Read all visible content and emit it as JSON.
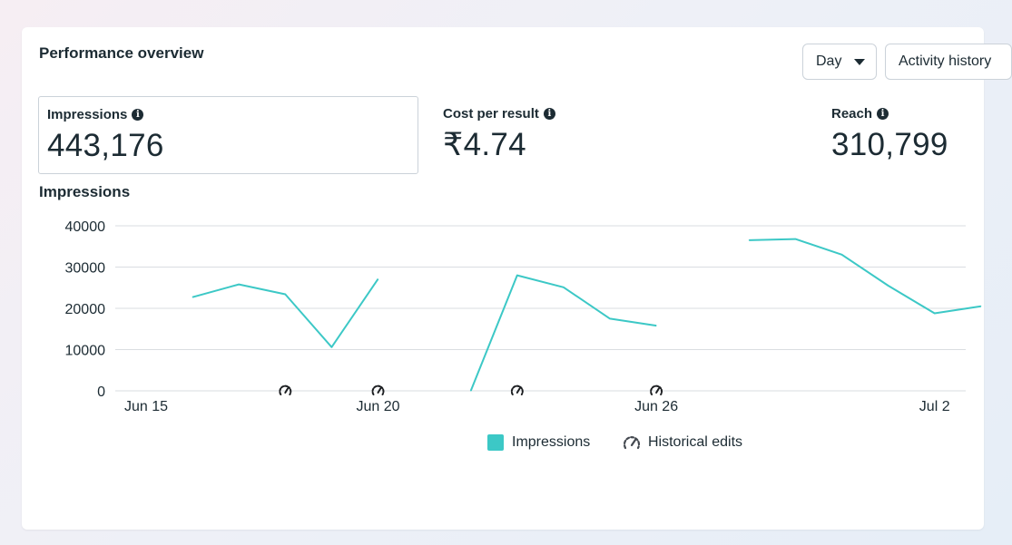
{
  "header": {
    "title": "Performance overview",
    "day_label": "Day",
    "activity_label": "Activity history"
  },
  "metrics": [
    {
      "label": "Impressions",
      "value": "443,176",
      "selected": true
    },
    {
      "label": "Cost per result",
      "value": "₹4.74",
      "selected": false
    },
    {
      "label": "Reach",
      "value": "310,799",
      "selected": false
    }
  ],
  "chart_title": "Impressions",
  "legend": {
    "impressions": "Impressions",
    "historical_edits": "Historical edits"
  },
  "colors": {
    "line": "#3cc8c6",
    "grid": "#dadde1"
  },
  "chart_data": {
    "type": "line",
    "title": "Impressions",
    "ylim": [
      0,
      40000
    ],
    "yticks": [
      0,
      10000,
      20000,
      30000,
      40000
    ],
    "xticks": [
      {
        "day": 0,
        "label": "Jun 15"
      },
      {
        "day": 5,
        "label": "Jun 20"
      },
      {
        "day": 11,
        "label": "Jun 26"
      },
      {
        "day": 17,
        "label": "Jul 2"
      }
    ],
    "series": [
      {
        "name": "Impressions",
        "segments": [
          [
            [
              1,
              22700
            ],
            [
              2,
              25800
            ],
            [
              3,
              23400
            ],
            [
              4,
              10600
            ],
            [
              5,
              27100
            ]
          ],
          [
            [
              7,
              0
            ],
            [
              8,
              28000
            ],
            [
              9,
              25100
            ],
            [
              10,
              17500
            ],
            [
              11,
              15800
            ]
          ],
          [
            [
              13,
              36500
            ],
            [
              14,
              36800
            ],
            [
              15,
              33000
            ],
            [
              16,
              25500
            ],
            [
              17,
              18800
            ],
            [
              18,
              20500
            ]
          ]
        ]
      }
    ],
    "historical_edit_days": [
      3,
      5,
      8,
      11
    ],
    "legend_position": "bottom"
  }
}
